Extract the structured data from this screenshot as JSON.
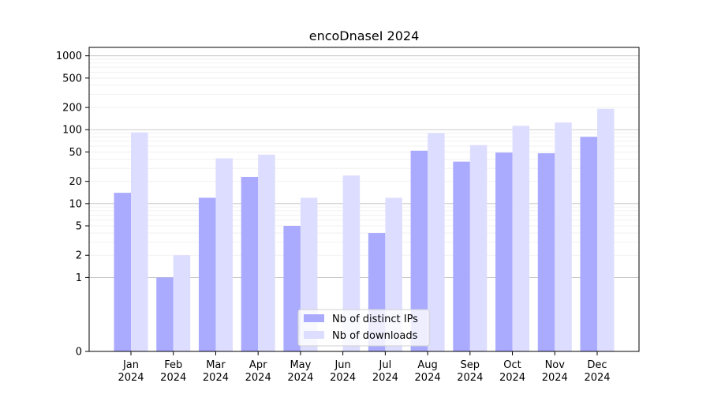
{
  "chart_data": {
    "type": "bar",
    "title": "encoDnaseI 2024",
    "xlabel": "",
    "ylabel": "",
    "yscale": "symlog",
    "ylim": [
      0,
      1300
    ],
    "yticks": [
      0,
      1,
      2,
      5,
      10,
      20,
      50,
      100,
      200,
      500,
      1000
    ],
    "categories": [
      "Jan\n2024",
      "Feb\n2024",
      "Mar\n2024",
      "Apr\n2024",
      "May\n2024",
      "Jun\n2024",
      "Jul\n2024",
      "Aug\n2024",
      "Sep\n2024",
      "Oct\n2024",
      "Nov\n2024",
      "Dec\n2024"
    ],
    "series": [
      {
        "name": "Nb of distinct IPs",
        "color": "#aaaaff",
        "values": [
          14,
          1,
          12,
          23,
          5,
          0,
          4,
          52,
          37,
          49,
          48,
          80
        ]
      },
      {
        "name": "Nb of downloads",
        "color": "#ddddff",
        "values": [
          92,
          2,
          41,
          46,
          12,
          24,
          12,
          90,
          62,
          113,
          125,
          192
        ]
      }
    ],
    "legend": "lower-center",
    "grid": "horizontal"
  }
}
